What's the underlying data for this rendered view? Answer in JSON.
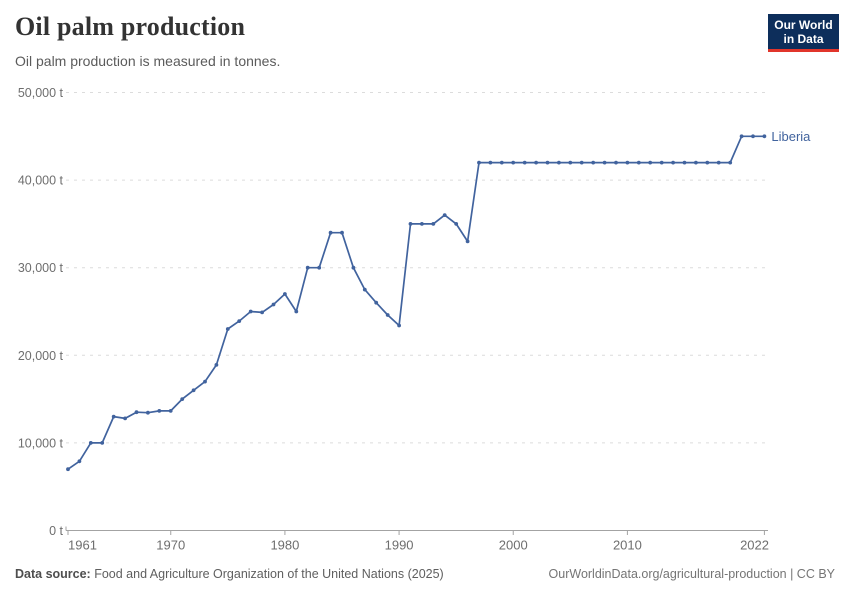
{
  "header": {
    "title": "Oil palm production",
    "subtitle": "Oil palm production is measured in tonnes.",
    "logo": {
      "line1": "Our World",
      "line2": "in Data",
      "bg_color": "#0d2e5b",
      "stripe_color": "#e1352b"
    }
  },
  "chart_data": {
    "type": "line",
    "title": "Oil palm production",
    "ylabel": "",
    "xlabel": "",
    "unit": "tonnes",
    "grid": "horizontal-dashed",
    "legend_position": "right-of-line-end",
    "ylim": [
      0,
      50000
    ],
    "yticks": [
      0,
      10000,
      20000,
      30000,
      40000,
      50000
    ],
    "ytick_labels": [
      "0 t",
      "10,000 t",
      "20,000 t",
      "30,000 t",
      "40,000 t",
      "50,000 t"
    ],
    "xticks": [
      1961,
      1970,
      1980,
      1990,
      2000,
      2010,
      2022
    ],
    "x": [
      1961,
      1962,
      1963,
      1964,
      1965,
      1966,
      1967,
      1968,
      1969,
      1970,
      1971,
      1972,
      1973,
      1974,
      1975,
      1976,
      1977,
      1978,
      1979,
      1980,
      1981,
      1982,
      1983,
      1984,
      1985,
      1986,
      1987,
      1988,
      1989,
      1990,
      1991,
      1992,
      1993,
      1994,
      1995,
      1996,
      1997,
      1998,
      1999,
      2000,
      2001,
      2002,
      2003,
      2004,
      2005,
      2006,
      2007,
      2008,
      2009,
      2010,
      2011,
      2012,
      2013,
      2014,
      2015,
      2016,
      2017,
      2018,
      2019,
      2020,
      2021,
      2022
    ],
    "series": [
      {
        "name": "Liberia",
        "color": "#41639e",
        "values": [
          7000,
          7900,
          10000,
          10000,
          13000,
          12800,
          13500,
          13450,
          13650,
          13650,
          15000,
          16000,
          17000,
          18900,
          23000,
          23900,
          25000,
          24900,
          25800,
          27000,
          25000,
          30000,
          30000,
          34000,
          34000,
          30000,
          27500,
          26000,
          24600,
          23400,
          35000,
          35000,
          35000,
          36000,
          35000,
          33000,
          42000,
          42000,
          42000,
          42000,
          42000,
          42000,
          42000,
          42000,
          42000,
          42000,
          42000,
          42000,
          42000,
          42000,
          42000,
          42000,
          42000,
          42000,
          42000,
          42000,
          42000,
          42000,
          42000,
          45000,
          45000,
          45000
        ]
      }
    ]
  },
  "footer": {
    "source_label": "Data source:",
    "source_text": " Food and Agriculture Organization of the United Nations (2025)",
    "right_text": "OurWorldinData.org/agricultural-production | CC BY"
  }
}
